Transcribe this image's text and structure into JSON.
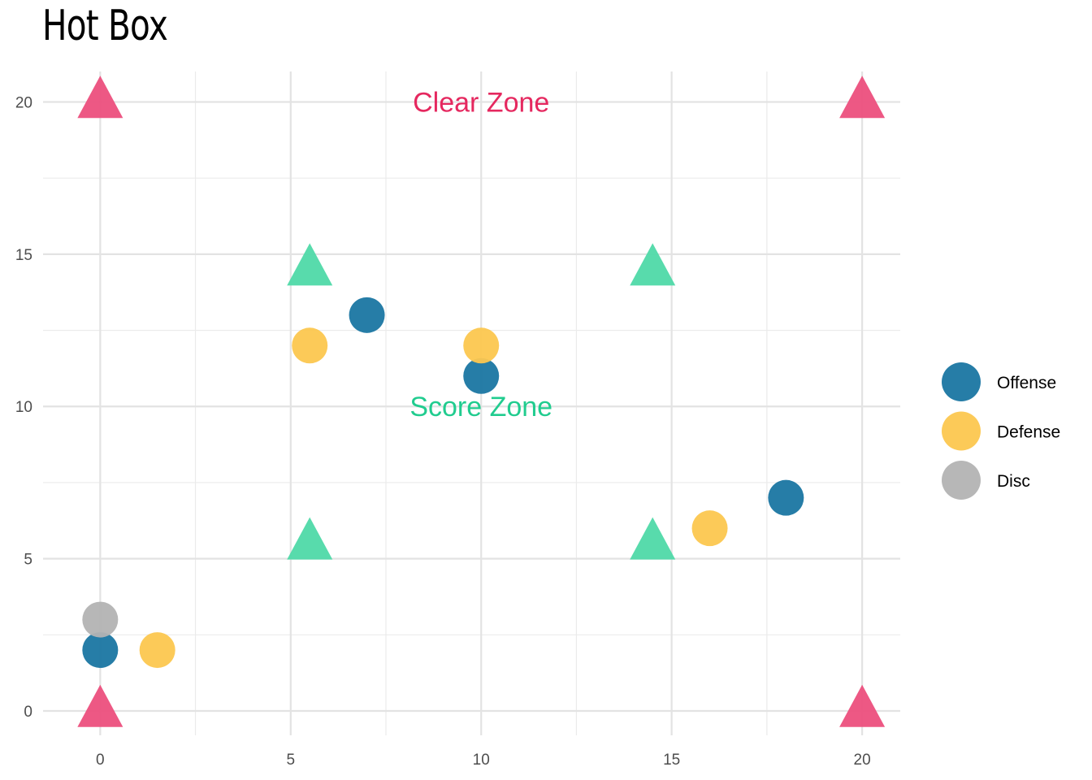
{
  "chart_data": {
    "type": "scatter",
    "title": "Hot Box",
    "xlabel": "",
    "ylabel": "",
    "xlim": [
      -1.5,
      21
    ],
    "ylim": [
      -0.8,
      21
    ],
    "x_ticks": [
      0,
      5,
      10,
      15,
      20
    ],
    "y_ticks": [
      0,
      5,
      10,
      15,
      20
    ],
    "grid": true,
    "legend_position": "right",
    "series": [
      {
        "name": "Offense",
        "color": "#1A76A2",
        "shape": "circle",
        "points": [
          [
            0,
            2
          ],
          [
            7,
            13
          ],
          [
            10,
            11
          ],
          [
            18,
            7
          ]
        ]
      },
      {
        "name": "Defense",
        "color": "#FCC74F",
        "shape": "circle",
        "points": [
          [
            1.5,
            2
          ],
          [
            5.5,
            12
          ],
          [
            10,
            12
          ],
          [
            16,
            6
          ]
        ]
      },
      {
        "name": "Disc",
        "color": "#B3B3B3",
        "shape": "circle",
        "points": [
          [
            0,
            3
          ]
        ]
      }
    ],
    "cones": [
      {
        "zone": "clear",
        "color": "#EC4F7D",
        "shape": "triangle",
        "points": [
          [
            0,
            0
          ],
          [
            0,
            20
          ],
          [
            20,
            0
          ],
          [
            20,
            20
          ]
        ]
      },
      {
        "zone": "score",
        "color": "#4FD9A8",
        "shape": "triangle",
        "points": [
          [
            5.5,
            5.5
          ],
          [
            5.5,
            14.5
          ],
          [
            14.5,
            5.5
          ],
          [
            14.5,
            14.5
          ]
        ]
      }
    ],
    "annotations": [
      {
        "text": "Clear Zone",
        "x": 10,
        "y": 20,
        "color": "#E5285F"
      },
      {
        "text": "Score Zone",
        "x": 10,
        "y": 10,
        "color": "#21CC8F"
      }
    ]
  }
}
